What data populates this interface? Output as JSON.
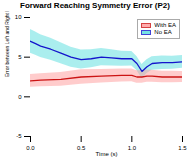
{
  "chart_data": {
    "type": "line",
    "title": "Forward Reaching Symmetry Error (P2)",
    "xlabel": "Time (s)",
    "ylabel": "Error between Left and Right Hand (cm)",
    "xlim": [
      0,
      1.5
    ],
    "ylim": [
      -5,
      10
    ],
    "xticks": [
      {
        "value": 0,
        "label": "0.0"
      },
      {
        "value": 0.5,
        "label": "0.5"
      },
      {
        "value": 1,
        "label": "1.0"
      },
      {
        "value": 1.5,
        "label": "1.5"
      }
    ],
    "yticks": [
      -5,
      0,
      5,
      10
    ],
    "grid": false,
    "legend": "upper right",
    "series": [
      {
        "name": "With EA",
        "colors": [
          "#CC1414",
          "#FF9999"
        ],
        "x": [
          0.0,
          0.1,
          0.3,
          0.5,
          0.7,
          0.9,
          1.0,
          1.05,
          1.1,
          1.15,
          1.2,
          1.3,
          1.4,
          1.5
        ],
        "values": [
          2.0,
          2.1,
          2.2,
          2.5,
          2.6,
          2.7,
          2.7,
          2.5,
          2.5,
          2.6,
          2.6,
          2.5,
          2.5,
          2.5
        ],
        "lower": [
          1.2,
          1.28,
          1.34,
          1.6,
          1.74,
          1.88,
          1.9,
          1.71,
          1.72,
          1.83,
          1.84,
          1.76,
          1.78,
          1.8
        ],
        "upper": [
          2.8,
          2.92,
          3.06,
          3.4,
          3.46,
          3.52,
          3.5,
          3.29,
          3.28,
          3.37,
          3.36,
          3.24,
          3.22,
          3.2
        ]
      },
      {
        "name": "No EA",
        "colors": [
          "#1414CC",
          "#55DDDD"
        ],
        "x": [
          0.0,
          0.05,
          0.1,
          0.2,
          0.3,
          0.4,
          0.5,
          0.6,
          0.7,
          0.8,
          0.9,
          1.0,
          1.05,
          1.1,
          1.15,
          1.2,
          1.3,
          1.4,
          1.5
        ],
        "values": [
          7.0,
          6.7,
          6.4,
          6.0,
          5.5,
          5.0,
          4.7,
          4.8,
          5.0,
          4.9,
          4.8,
          4.8,
          4.2,
          3.2,
          3.8,
          4.2,
          4.3,
          4.3,
          4.4
        ],
        "lower": [
          5.5,
          5.23,
          4.96,
          4.62,
          4.18,
          3.74,
          3.5,
          3.66,
          3.92,
          3.88,
          3.84,
          3.9,
          3.31,
          2.32,
          2.93,
          3.34,
          3.46,
          3.48,
          3.6
        ],
        "upper": [
          8.5,
          8.17,
          7.84,
          7.38,
          6.82,
          6.26,
          5.9,
          5.94,
          6.08,
          5.92,
          5.76,
          5.7,
          5.09,
          4.08,
          4.67,
          5.06,
          5.14,
          5.12,
          5.2
        ]
      }
    ]
  }
}
